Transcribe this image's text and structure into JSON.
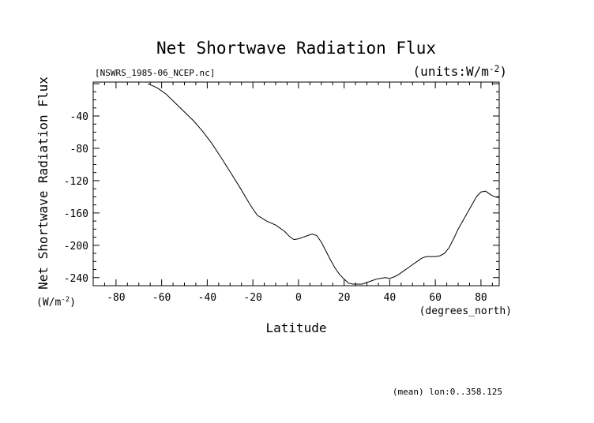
{
  "chart_data": {
    "type": "line",
    "title": "Net Shortwave Radiation Flux",
    "source_file": "[NSWRS_1985-06_NCEP.nc]",
    "units": "(units:W/m^-2)",
    "xlabel": "Latitude",
    "x_units": "(degrees_north)",
    "ylabel": "Net Shortwave Radiation Flux",
    "y_units": "(W/m^-2)",
    "footnote": "(mean) lon:0..358.125",
    "xlim": [
      -90,
      88
    ],
    "ylim": [
      -250,
      2
    ],
    "x_ticks": [
      -80,
      -60,
      -40,
      -20,
      0,
      20,
      40,
      60,
      80
    ],
    "y_ticks": [
      -40,
      -80,
      -120,
      -160,
      -200,
      -240
    ],
    "grid": false,
    "legend": "none",
    "line_color": "#000000",
    "series": [
      {
        "x": [
          -66,
          -62,
          -58,
          -54,
          -50,
          -46,
          -42,
          -38,
          -34,
          -30,
          -26,
          -22,
          -20,
          -18,
          -14,
          -10,
          -6,
          -4,
          -2,
          0,
          2,
          4,
          6,
          8,
          10,
          12,
          14,
          16,
          18,
          20,
          22,
          24,
          26,
          28,
          30,
          32,
          34,
          36,
          38,
          40,
          42,
          44,
          46,
          48,
          50,
          52,
          54,
          56,
          58,
          60,
          62,
          64,
          66,
          68,
          70,
          72,
          74,
          76,
          78,
          80,
          82,
          84,
          86,
          88
        ],
        "values": [
          0,
          -5,
          -13,
          -24,
          -35,
          -46,
          -59,
          -74,
          -91,
          -109,
          -127,
          -146,
          -155,
          -163,
          -170,
          -175,
          -183,
          -189,
          -193,
          -192,
          -190,
          -188,
          -186,
          -188,
          -196,
          -207,
          -218,
          -228,
          -236,
          -242,
          -247,
          -248,
          -248,
          -248,
          -246,
          -244,
          -242,
          -241,
          -240,
          -241,
          -239,
          -236,
          -232,
          -228,
          -224,
          -220,
          -216,
          -214,
          -214,
          -214,
          -213,
          -210,
          -203,
          -192,
          -180,
          -170,
          -160,
          -150,
          -140,
          -134,
          -133,
          -137,
          -140,
          -141
        ]
      }
    ]
  }
}
